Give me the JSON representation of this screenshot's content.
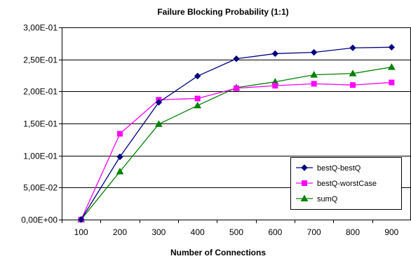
{
  "chart_data": {
    "type": "line",
    "title": "Failure Blocking Probability (1:1)",
    "xlabel": "Number of Connections",
    "ylabel": "",
    "categories": [
      "100",
      "200",
      "300",
      "400",
      "500",
      "600",
      "700",
      "800",
      "900"
    ],
    "y_ticks": [
      "0,00E+00",
      "5,00E-02",
      "1,00E-01",
      "1,50E-01",
      "2,00E-01",
      "2,50E-01",
      "3,00E-01"
    ],
    "ylim": [
      0,
      0.3
    ],
    "grid": "horizontal",
    "legend_position": "right",
    "series": [
      {
        "name": "bestQ-bestQ",
        "color": "#000080",
        "marker": "diamond",
        "values": [
          0.0,
          0.098,
          0.183,
          0.224,
          0.251,
          0.259,
          0.261,
          0.268,
          0.269
        ]
      },
      {
        "name": "bestQ-worstCase",
        "color": "#ff00ff",
        "marker": "square",
        "values": [
          0.0,
          0.134,
          0.187,
          0.189,
          0.205,
          0.209,
          0.212,
          0.21,
          0.214
        ]
      },
      {
        "name": "sumQ",
        "color": "#008000",
        "marker": "triangle",
        "values": [
          0.0,
          0.075,
          0.149,
          0.178,
          0.206,
          0.215,
          0.226,
          0.228,
          0.238
        ]
      }
    ]
  }
}
